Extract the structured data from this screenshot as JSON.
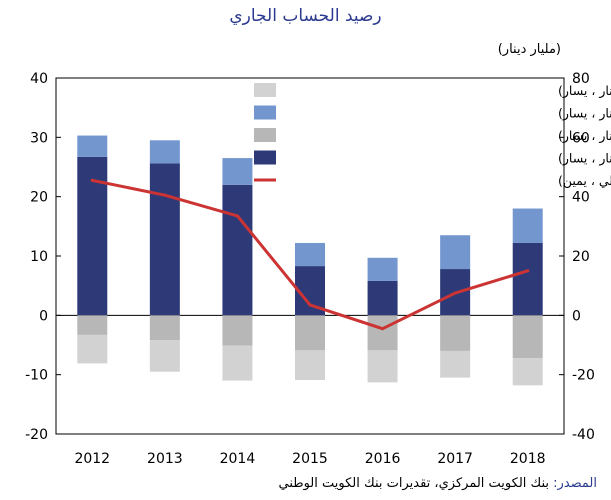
{
  "chart_data": {
    "type": "bar",
    "title": "رصيد الحساب الجاري",
    "unit_label": "(مليار دينار)",
    "categories": [
      "2012",
      "2013",
      "2014",
      "2015",
      "2016",
      "2017",
      "2018"
    ],
    "series": [
      {
        "name": "السلع (مليار دينار ، يسار)",
        "axis": "left",
        "color": "#2e3a78",
        "values": [
          26.7,
          25.6,
          22.0,
          8.3,
          5.8,
          7.8,
          12.2
        ]
      },
      {
        "name": "الدخل  (صافي، مليار دينار ، يسار)",
        "axis": "left",
        "color": "#7396cf",
        "values": [
          3.6,
          3.9,
          4.5,
          3.9,
          3.9,
          5.7,
          5.8
        ]
      },
      {
        "name": "الخدمات (صافي، مليار دينار ، يسار)",
        "axis": "left",
        "color": "#b7b7b7",
        "values": [
          -3.3,
          -4.2,
          -5.1,
          -5.9,
          -5.9,
          -6.0,
          -7.2
        ]
      },
      {
        "name": "التحويلات  (صافي، مليار دينار ، يسار)",
        "axis": "left",
        "color": "#d2d2d2",
        "values": [
          -4.8,
          -5.3,
          -5.9,
          -5.0,
          -5.4,
          -4.5,
          -4.6
        ]
      },
      {
        "name": "الحساب الجاري (٪ من إجمالي الناتج المحلي ، يمين)",
        "axis": "right",
        "color": "#cc3333",
        "type": "line",
        "values": [
          45.5,
          40.5,
          33.5,
          3.5,
          -4.5,
          7.5,
          15.0
        ]
      }
    ],
    "ylim_left": [
      -20,
      40
    ],
    "ylim_right": [
      -40,
      80
    ],
    "yticks_left": [
      "40",
      "30",
      "20",
      "10",
      "0",
      "-10",
      "-20"
    ],
    "yticks_right": [
      "80",
      "60",
      "40",
      "20",
      "0",
      "-20",
      "-40"
    ],
    "legend_position": "top-right",
    "grid": false,
    "source": {
      "label": "المصدر:",
      "text": " بنك الكويت المركزي، تقديرات بنك الكويت الوطني"
    }
  }
}
